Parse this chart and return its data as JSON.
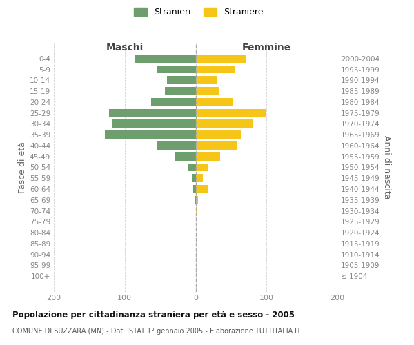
{
  "age_groups": [
    "0-4",
    "5-9",
    "10-14",
    "15-19",
    "20-24",
    "25-29",
    "30-34",
    "35-39",
    "40-44",
    "45-49",
    "50-54",
    "55-59",
    "60-64",
    "65-69",
    "70-74",
    "75-79",
    "80-84",
    "85-89",
    "90-94",
    "95-99",
    "100+"
  ],
  "birth_years": [
    "2000-2004",
    "1995-1999",
    "1990-1994",
    "1985-1989",
    "1980-1984",
    "1975-1979",
    "1970-1974",
    "1965-1969",
    "1960-1964",
    "1955-1959",
    "1950-1954",
    "1945-1949",
    "1940-1944",
    "1935-1939",
    "1930-1934",
    "1925-1929",
    "1920-1924",
    "1915-1919",
    "1910-1914",
    "1905-1909",
    "≤ 1904"
  ],
  "maschi": [
    85,
    55,
    40,
    43,
    63,
    122,
    118,
    128,
    55,
    30,
    10,
    5,
    4,
    1,
    0,
    0,
    0,
    0,
    0,
    0,
    0
  ],
  "femmine": [
    72,
    55,
    30,
    33,
    53,
    100,
    80,
    65,
    58,
    35,
    18,
    10,
    18,
    3,
    1,
    0,
    0,
    0,
    0,
    0,
    0
  ],
  "male_color": "#6e9e6e",
  "female_color": "#f5c518",
  "background_color": "#ffffff",
  "grid_color": "#cccccc",
  "title": "Popolazione per cittadinanza straniera per età e sesso - 2005",
  "subtitle": "COMUNE DI SUZZARA (MN) - Dati ISTAT 1° gennaio 2005 - Elaborazione TUTTITALIA.IT",
  "ylabel_left": "Fasce di età",
  "ylabel_right": "Anni di nascita",
  "xlabel_left": "Maschi",
  "xlabel_right": "Femmine",
  "legend_stranieri": "Stranieri",
  "legend_straniere": "Straniere",
  "xlim": 200
}
